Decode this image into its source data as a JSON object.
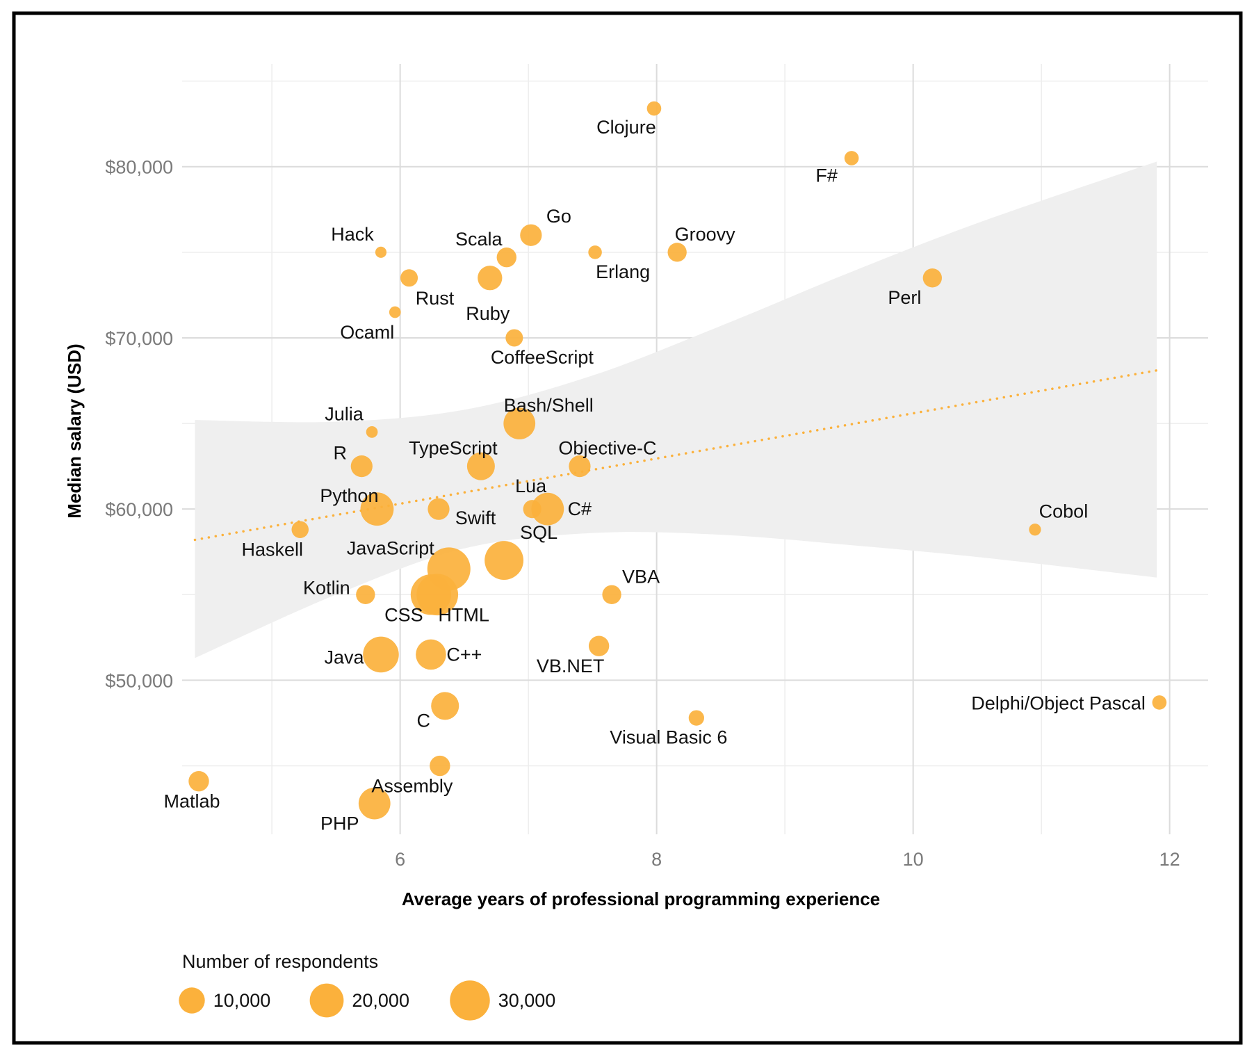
{
  "chart_data": {
    "type": "scatter",
    "xlabel": "Average years of professional programming experience",
    "ylabel": "Median salary (USD)",
    "xlim": [
      4.3,
      12.3
    ],
    "ylim": [
      41000,
      86000
    ],
    "x_ticks": [
      6,
      8,
      10,
      12
    ],
    "x_tick_labels": [
      "6",
      "8",
      "10",
      "12"
    ],
    "y_ticks": [
      50000,
      60000,
      70000,
      80000
    ],
    "y_tick_labels": [
      "$50,000",
      "$60,000",
      "$70,000",
      "$80,000"
    ],
    "grid": true,
    "point_color": "#FBB13C",
    "trend": {
      "style": "dotted",
      "x_start": 4.4,
      "y_start": 58200,
      "x_end": 11.9,
      "y_end": 68100,
      "band": {
        "x": [
          4.4,
          5.5,
          6.5,
          7.5,
          8.5,
          9.5,
          10.5,
          11.9
        ],
        "upper": [
          65200,
          65100,
          65800,
          67800,
          70700,
          73800,
          76700,
          80300
        ],
        "lower": [
          51300,
          55000,
          57700,
          58600,
          58500,
          57900,
          57200,
          56000
        ]
      }
    },
    "legend": {
      "title": "Number of respondents",
      "placement": "bottom-left",
      "entries": [
        {
          "label": "10,000",
          "value": 10000
        },
        {
          "label": "20,000",
          "value": 20000
        },
        {
          "label": "30,000",
          "value": 30000
        }
      ]
    },
    "points": [
      {
        "name": "Clojure",
        "x": 7.98,
        "y": 83400,
        "n": 1500
      },
      {
        "name": "F#",
        "x": 9.52,
        "y": 80500,
        "n": 1500
      },
      {
        "name": "Hack",
        "x": 5.85,
        "y": 75000,
        "n": 500
      },
      {
        "name": "Go",
        "x": 7.02,
        "y": 76000,
        "n": 6000
      },
      {
        "name": "Scala",
        "x": 6.83,
        "y": 74700,
        "n": 4500
      },
      {
        "name": "Erlang",
        "x": 7.52,
        "y": 75000,
        "n": 1200
      },
      {
        "name": "Groovy",
        "x": 8.16,
        "y": 75000,
        "n": 4000
      },
      {
        "name": "Rust",
        "x": 6.07,
        "y": 73500,
        "n": 3000
      },
      {
        "name": "Ruby",
        "x": 6.7,
        "y": 73500,
        "n": 8500
      },
      {
        "name": "Perl",
        "x": 10.15,
        "y": 73500,
        "n": 4000
      },
      {
        "name": "Ocaml",
        "x": 5.96,
        "y": 71500,
        "n": 600
      },
      {
        "name": "CoffeeScript",
        "x": 6.89,
        "y": 70000,
        "n": 3000
      },
      {
        "name": "Bash/Shell",
        "x": 6.93,
        "y": 65000,
        "n": 17000
      },
      {
        "name": "Julia",
        "x": 5.78,
        "y": 64500,
        "n": 600
      },
      {
        "name": "TypeScript",
        "x": 6.63,
        "y": 62500,
        "n": 12000
      },
      {
        "name": "Objective-C",
        "x": 7.4,
        "y": 62500,
        "n": 6000
      },
      {
        "name": "R",
        "x": 5.7,
        "y": 62500,
        "n": 6000
      },
      {
        "name": "Python",
        "x": 5.82,
        "y": 60000,
        "n": 19000
      },
      {
        "name": "Swift",
        "x": 6.3,
        "y": 60000,
        "n": 6000
      },
      {
        "name": "Lua",
        "x": 7.03,
        "y": 60000,
        "n": 3500
      },
      {
        "name": "C#",
        "x": 7.15,
        "y": 60000,
        "n": 18000
      },
      {
        "name": "Cobol",
        "x": 10.95,
        "y": 58800,
        "n": 700
      },
      {
        "name": "Haskell",
        "x": 5.22,
        "y": 58800,
        "n": 2800
      },
      {
        "name": "SQL",
        "x": 6.81,
        "y": 57000,
        "n": 28000
      },
      {
        "name": "JavaScript",
        "x": 6.38,
        "y": 56500,
        "n": 36000
      },
      {
        "name": "Kotlin",
        "x": 5.73,
        "y": 55000,
        "n": 4000
      },
      {
        "name": "CSS",
        "x": 6.24,
        "y": 55000,
        "n": 31000
      },
      {
        "name": "HTML",
        "x": 6.29,
        "y": 55000,
        "n": 33000
      },
      {
        "name": "VBA",
        "x": 7.65,
        "y": 55000,
        "n": 4000
      },
      {
        "name": "VB.NET",
        "x": 7.55,
        "y": 52000,
        "n": 5000
      },
      {
        "name": "Java",
        "x": 5.85,
        "y": 51500,
        "n": 23000
      },
      {
        "name": "C++",
        "x": 6.24,
        "y": 51500,
        "n": 15000
      },
      {
        "name": "Delphi/Object Pascal",
        "x": 11.92,
        "y": 48700,
        "n": 1500
      },
      {
        "name": "C",
        "x": 6.35,
        "y": 48500,
        "n": 12000
      },
      {
        "name": "Visual Basic 6",
        "x": 8.31,
        "y": 47800,
        "n": 2000
      },
      {
        "name": "Assembly",
        "x": 6.31,
        "y": 45000,
        "n": 5000
      },
      {
        "name": "Matlab",
        "x": 4.43,
        "y": 44100,
        "n": 5000
      },
      {
        "name": "PHP",
        "x": 5.8,
        "y": 42800,
        "n": 17000
      }
    ]
  }
}
